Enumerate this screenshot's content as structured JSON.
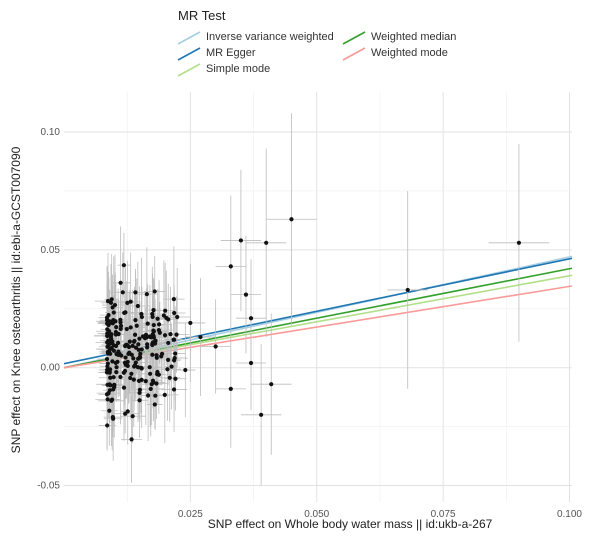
{
  "chart_data": {
    "type": "scatter",
    "xlabel": "SNP effect on Whole body water mass || id:ukb-a-267",
    "ylabel": "SNP effect on Knee osteoarthritis || id:ebi-a-GCST007090",
    "xlim": [
      0.0,
      0.1005
    ],
    "ylim": [
      -0.057,
      0.117
    ],
    "x_ticks": [
      0.025,
      0.05,
      0.075,
      0.1
    ],
    "x_tick_labels": [
      "0.025",
      "0.050",
      "0.075",
      "0.100"
    ],
    "y_ticks": [
      -0.05,
      0.0,
      0.05,
      0.1
    ],
    "y_tick_labels": [
      "-0.05",
      "0.00",
      "0.05",
      "0.10"
    ],
    "grid": true,
    "legend": {
      "title": "MR Test",
      "position": "top"
    },
    "mr_lines": [
      {
        "name": "Inverse variance weighted",
        "slope": 0.47,
        "intercept": 0.0,
        "color": "#a6cee3"
      },
      {
        "name": "MR Egger",
        "slope": 0.445,
        "intercept": 0.0017,
        "color": "#1f78b4"
      },
      {
        "name": "Simple mode",
        "slope": 0.39,
        "intercept": 0.0,
        "color": "#b2df8a"
      },
      {
        "name": "Weighted median",
        "slope": 0.42,
        "intercept": 0.0,
        "color": "#33a02c"
      },
      {
        "name": "Weighted mode",
        "slope": 0.345,
        "intercept": 0.0,
        "color": "#fb9a99"
      }
    ],
    "highlighted_points": [
      {
        "x": 0.09,
        "y": 0.053,
        "x_err": 0.006,
        "y_err": 0.042
      },
      {
        "x": 0.068,
        "y": 0.033,
        "x_err": 0.004,
        "y_err": 0.042
      },
      {
        "x": 0.045,
        "y": 0.063,
        "x_err": 0.005,
        "y_err": 0.045
      },
      {
        "x": 0.04,
        "y": 0.053,
        "x_err": 0.004,
        "y_err": 0.04
      },
      {
        "x": 0.035,
        "y": 0.054,
        "x_err": 0.004,
        "y_err": 0.03
      },
      {
        "x": 0.033,
        "y": 0.043,
        "x_err": 0.003,
        "y_err": 0.03
      },
      {
        "x": 0.036,
        "y": 0.031,
        "x_err": 0.003,
        "y_err": 0.025
      },
      {
        "x": 0.037,
        "y": 0.021,
        "x_err": 0.003,
        "y_err": 0.025
      },
      {
        "x": 0.041,
        "y": -0.007,
        "x_err": 0.004,
        "y_err": 0.03
      },
      {
        "x": 0.039,
        "y": -0.02,
        "x_err": 0.004,
        "y_err": 0.03
      },
      {
        "x": 0.033,
        "y": -0.009,
        "x_err": 0.003,
        "y_err": 0.025
      },
      {
        "x": 0.037,
        "y": 0.002,
        "x_err": 0.003,
        "y_err": 0.02
      },
      {
        "x": 0.03,
        "y": 0.009,
        "x_err": 0.003,
        "y_err": 0.02
      },
      {
        "x": 0.027,
        "y": 0.013,
        "x_err": 0.003,
        "y_err": 0.025
      },
      {
        "x": 0.025,
        "y": 0.019,
        "x_err": 0.003,
        "y_err": 0.025
      },
      {
        "x": 0.022,
        "y": 0.006,
        "x_err": 0.002,
        "y_err": 0.02
      },
      {
        "x": 0.024,
        "y": -0.001,
        "x_err": 0.002,
        "y_err": 0.02
      }
    ]
  }
}
